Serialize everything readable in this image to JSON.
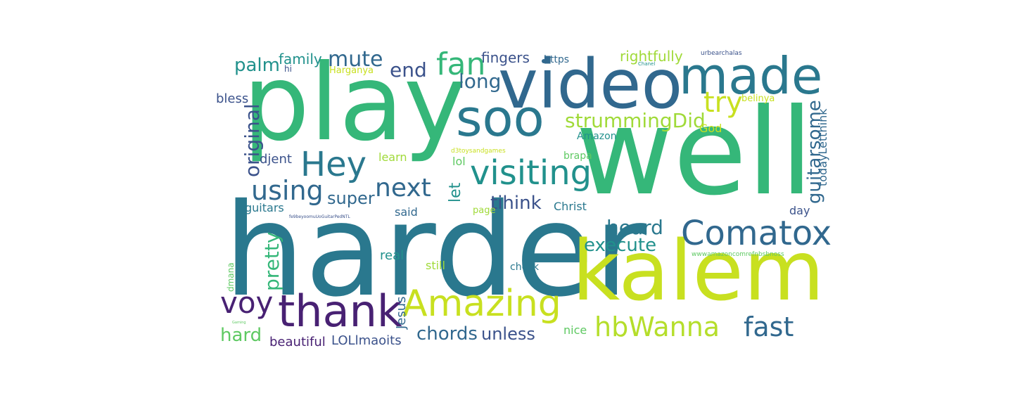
{
  "words": [
    {
      "text": "play",
      "color": "#35b779"
    },
    {
      "text": "harder",
      "color": "#2a788e"
    },
    {
      "text": "well",
      "color": "#35b779"
    },
    {
      "text": "kalem",
      "color": "#c8e020"
    },
    {
      "text": "video",
      "color": "#31688e"
    },
    {
      "text": "made",
      "color": "#2a788e"
    },
    {
      "text": "soo",
      "color": "#2a788e"
    },
    {
      "text": "Amazing",
      "color": "#c8e020"
    },
    {
      "text": "thank",
      "color": "#482173"
    },
    {
      "text": "Comatox",
      "color": "#31688e"
    },
    {
      "text": "Hey",
      "color": "#2a788e"
    },
    {
      "text": "visiting",
      "color": "#21918c"
    },
    {
      "text": "hbWanna",
      "color": "#b5de2b"
    },
    {
      "text": "voy",
      "color": "#482173"
    },
    {
      "text": "fan",
      "color": "#35b779"
    },
    {
      "text": "using",
      "color": "#31688e"
    },
    {
      "text": "next",
      "color": "#31688e"
    },
    {
      "text": "fast",
      "color": "#31688e"
    },
    {
      "text": "try",
      "color": "#c8e020"
    },
    {
      "text": "heard",
      "color": "#2a788e"
    },
    {
      "text": "execute",
      "color": "#21918c"
    },
    {
      "text": "strummingDid",
      "color": "#a0da39"
    },
    {
      "text": "mute",
      "color": "#31688e"
    },
    {
      "text": "end",
      "color": "#3b528b"
    },
    {
      "text": "palm",
      "color": "#21918c"
    },
    {
      "text": "long",
      "color": "#31688e"
    },
    {
      "text": "original",
      "color": "#3b528b"
    },
    {
      "text": "pretty",
      "color": "#35b779"
    },
    {
      "text": "guitarsome",
      "color": "#31688e"
    },
    {
      "text": "tihink",
      "color": "#3b528b"
    },
    {
      "text": "super",
      "color": "#31688e"
    },
    {
      "text": "chords",
      "color": "#31688e"
    },
    {
      "text": "unless",
      "color": "#3b528b"
    },
    {
      "text": "hard",
      "color": "#5ec962"
    },
    {
      "text": "let",
      "color": "#21918c"
    },
    {
      "text": "family",
      "color": "#21918c"
    },
    {
      "text": "fingers",
      "color": "#3b528b"
    },
    {
      "text": "rightfully",
      "color": "#a0da39"
    },
    {
      "text": "bless",
      "color": "#3b528b"
    },
    {
      "text": "beautiful",
      "color": "#482173"
    },
    {
      "text": "LOLlmaoits",
      "color": "#3b528b"
    },
    {
      "text": "Jesus",
      "color": "#31688e"
    },
    {
      "text": "todayLetthink",
      "color": "#31688e"
    },
    {
      "text": "djent",
      "color": "#3b528b"
    },
    {
      "text": "learn",
      "color": "#a0da39"
    },
    {
      "text": "lol",
      "color": "#5ec962"
    },
    {
      "text": "guitars",
      "color": "#2a788e"
    },
    {
      "text": "said",
      "color": "#31688e"
    },
    {
      "text": "real",
      "color": "#21918c"
    },
    {
      "text": "still",
      "color": "#a0da39"
    },
    {
      "text": "nice",
      "color": "#5ec962"
    },
    {
      "text": "Christ",
      "color": "#2a788e"
    },
    {
      "text": "day",
      "color": "#3b528b"
    },
    {
      "text": "God",
      "color": "#c8e020"
    },
    {
      "text": "Amazon",
      "color": "#21918c"
    },
    {
      "text": "brapa",
      "color": "#5ec962"
    },
    {
      "text": "check",
      "color": "#2a788e"
    },
    {
      "text": "https",
      "color": "#31688e"
    },
    {
      "text": "hi",
      "color": "#3b528b"
    },
    {
      "text": "Harganya",
      "color": "#c8e020"
    },
    {
      "text": "page",
      "color": "#a0da39"
    },
    {
      "text": "belinya",
      "color": "#c8e020"
    },
    {
      "text": "dmana",
      "color": "#5ec962"
    },
    {
      "text": "urbearchalas",
      "color": "#3b528b"
    },
    {
      "text": "Chanel",
      "color": "#21918c"
    },
    {
      "text": "d3toysandgames",
      "color": "#c8e020"
    },
    {
      "text": "wwwamazoncomrefnbsbnoss",
      "color": "#5ec962"
    },
    {
      "text": "fe9beyoomuUoGuitarPedNTL",
      "color": "#3b528b"
    },
    {
      "text": "Gaming",
      "color": "#5ec962"
    }
  ]
}
